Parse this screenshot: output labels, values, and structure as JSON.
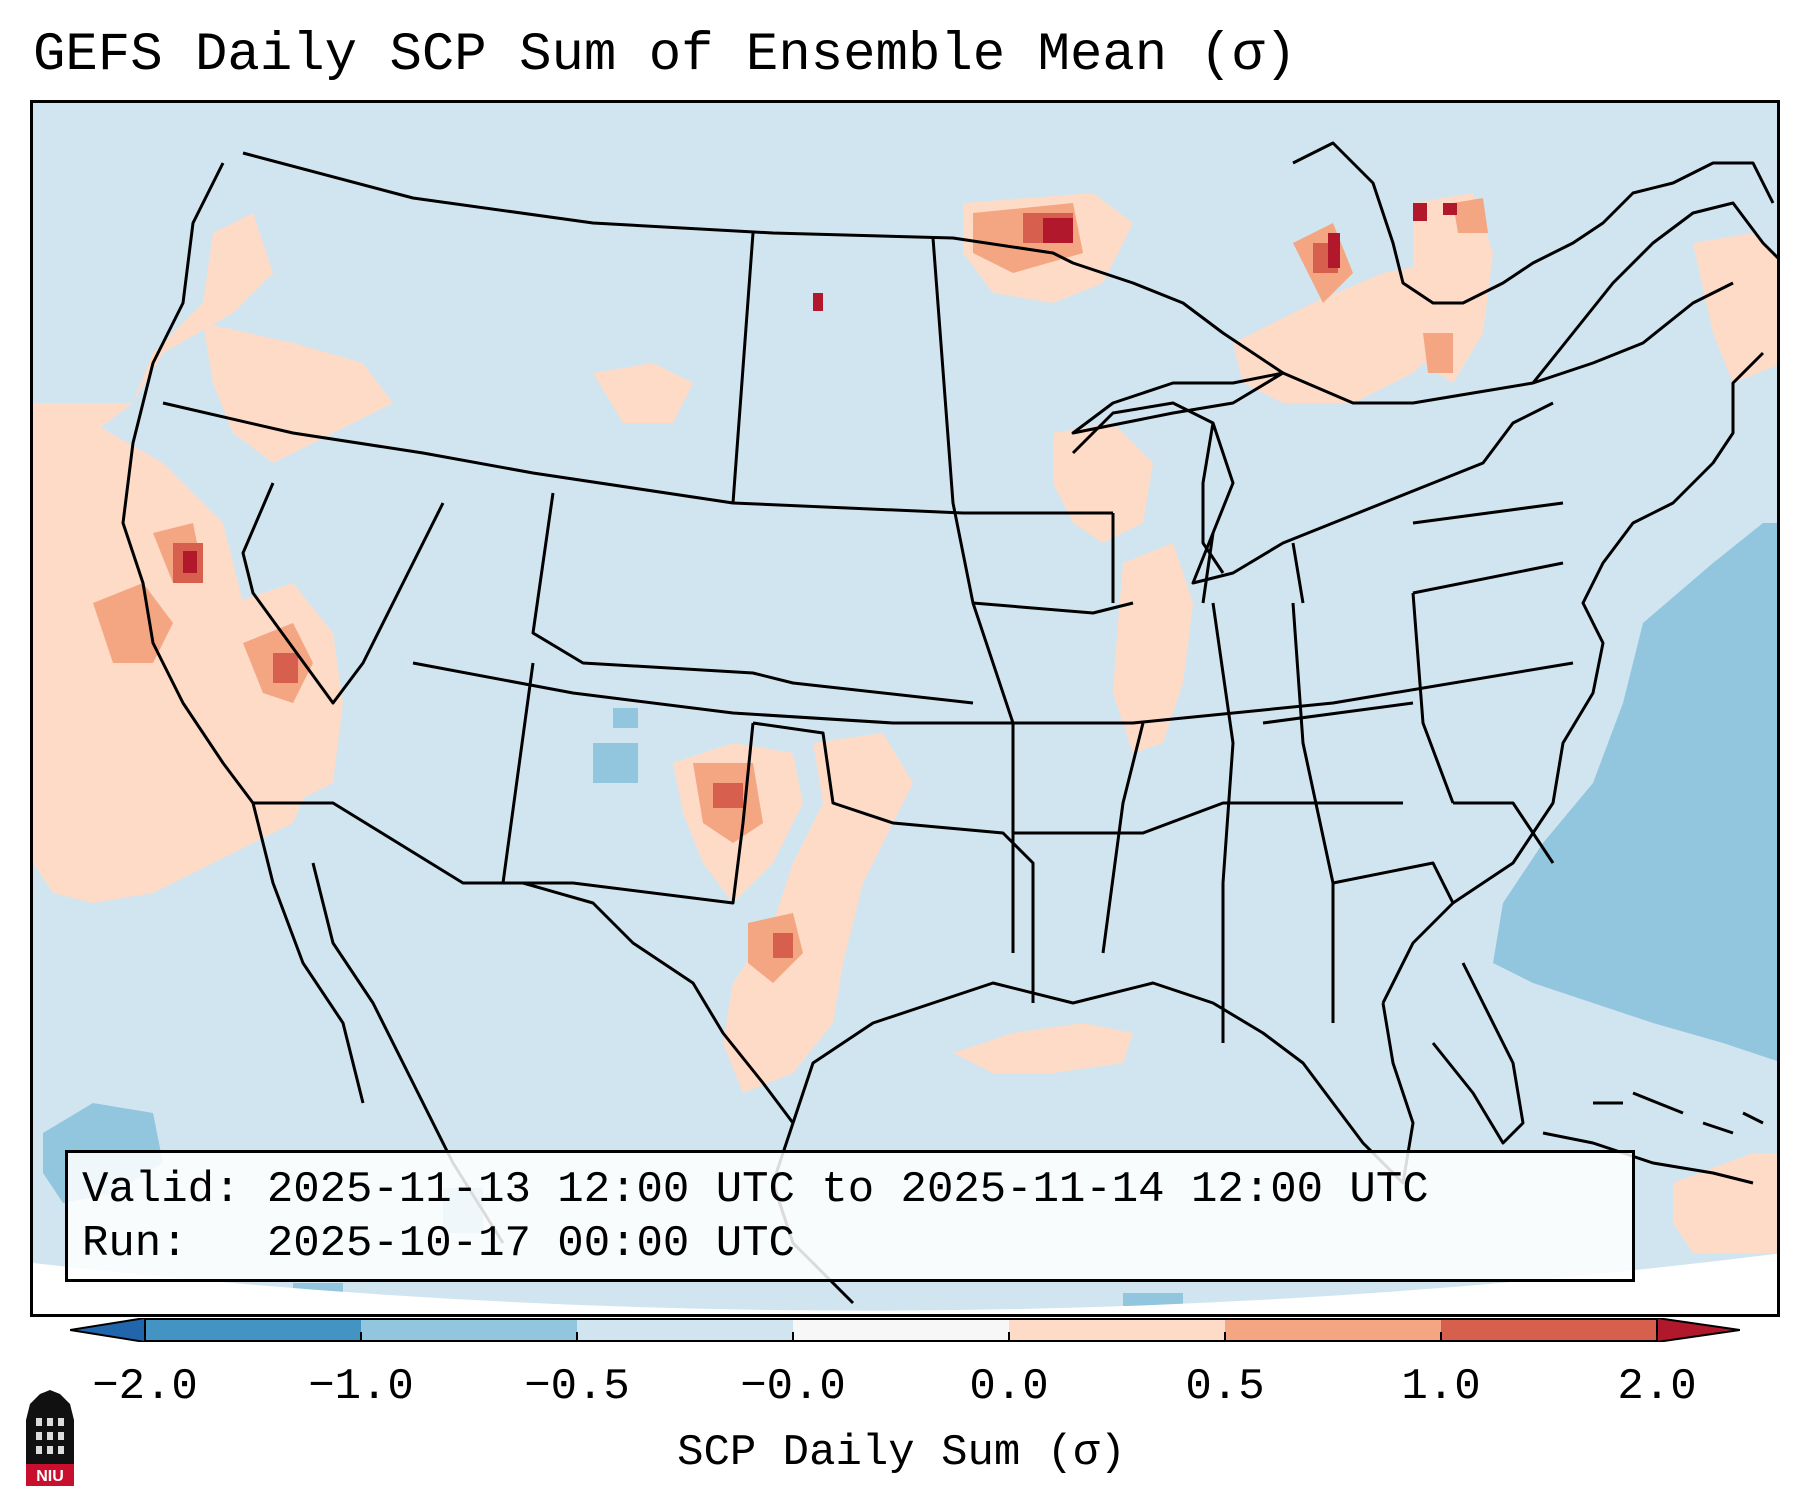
{
  "title": "GEFS Daily SCP Sum of Ensemble Mean (σ)",
  "info": {
    "valid_label": "Valid:",
    "valid_value": "2025-11-13 12:00 UTC to 2025-11-14 12:00 UTC",
    "run_label": "Run:",
    "run_value": "2025-10-17 00:00 UTC"
  },
  "colorbar": {
    "label": "SCP Daily Sum (σ)",
    "ticks": [
      "−2.0",
      "−1.0",
      "−0.5",
      "−0.0",
      "0.0",
      "0.5",
      "1.0",
      "2.0"
    ],
    "bins": [
      {
        "range": "< -2.0",
        "color": "#2166ac"
      },
      {
        "range": "-2.0 to -1.0",
        "color": "#4393c3"
      },
      {
        "range": "-1.0 to -0.5",
        "color": "#92c5de"
      },
      {
        "range": "-0.5 to -0.0",
        "color": "#d1e5f0"
      },
      {
        "range": "-0.0 to 0.0",
        "color": "#f7f7f7"
      },
      {
        "range": "0.0 to 0.5",
        "color": "#fddbc7"
      },
      {
        "range": "0.5 to 1.0",
        "color": "#f4a582"
      },
      {
        "range": "1.0 to 2.0",
        "color": "#d6604d"
      },
      {
        "range": "> 2.0",
        "color": "#b2182b"
      }
    ]
  },
  "map": {
    "projection": "Lambert Conformal (CONUS)",
    "background_color": "#d1e5f0",
    "features": [
      "coastlines",
      "state-borders",
      "country-borders",
      "lakes"
    ],
    "anomaly_regions": [
      {
        "name": "northern-california",
        "level": "0.5 to 1.0",
        "peak": "> 2.0"
      },
      {
        "name": "western-nevada",
        "level": "0.0 to 0.5",
        "peak": "1.0 to 2.0"
      },
      {
        "name": "eastern-new-mexico",
        "level": "0.5 to 1.0",
        "peak": "1.0 to 2.0"
      },
      {
        "name": "central-texas",
        "level": "0.0 to 0.5",
        "peak": "1.0 to 2.0"
      },
      {
        "name": "southern-manitoba",
        "level": "0.5 to 1.0",
        "peak": "> 2.0"
      },
      {
        "name": "northern-ontario",
        "level": "0.5 to 1.0",
        "peak": "> 2.0"
      },
      {
        "name": "western-atlantic",
        "level": "-1.0 to -0.5"
      },
      {
        "name": "eastern-colorado",
        "level": "-1.0 to -0.5"
      },
      {
        "name": "eastern-pacific",
        "level": "-1.0 to -0.5"
      }
    ]
  },
  "logo": {
    "text": "NIU",
    "color": "#c8102e"
  }
}
